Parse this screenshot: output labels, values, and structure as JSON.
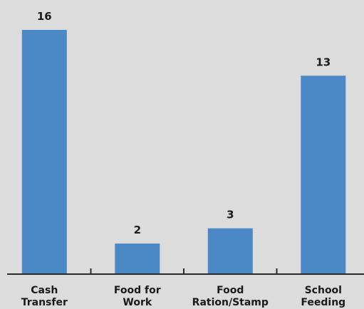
{
  "chart_data": {
    "type": "bar",
    "categories": [
      [
        "Cash",
        "Transfer"
      ],
      [
        "Food for",
        "Work"
      ],
      [
        "Food",
        "Ration/Stamp"
      ],
      [
        "School",
        "Feeding"
      ]
    ],
    "values": [
      16,
      2,
      3,
      13
    ],
    "data_labels": [
      "16",
      "2",
      "3",
      "13"
    ],
    "title": "",
    "xlabel": "",
    "ylabel": "",
    "ylim": [
      0,
      16
    ],
    "grid": false,
    "legend": "none",
    "colors": {
      "bar": "#4a89c6",
      "axis": "#2b2b2b",
      "background": "#dcdcdd",
      "text": "#1a1a1a"
    }
  }
}
